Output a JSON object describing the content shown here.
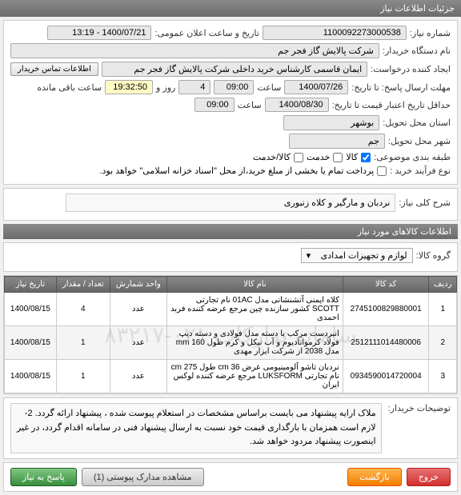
{
  "header": {
    "title": "جزئیات اطلاعات نیاز"
  },
  "fields": {
    "need_no_label": "شماره نیاز:",
    "need_no": "1100092273000538",
    "announce_label": "تاریخ و ساعت اعلان عمومی:",
    "announce": "1400/07/21 - 13:19",
    "device_label": "نام دستگاه خریدار:",
    "device": "شرکت پالایش گاز فجر جم",
    "requester_label": "ایجاد کننده درخواست:",
    "requester": "ایمان قاسمی کارشناس خرید داخلی شرکت پالایش گاز فجر جم",
    "contact_btn": "اطلاعات تماس خریدار",
    "deadline_label": "مهلت ارسال پاسخ: تا تاریخ:",
    "deadline_date": "1400/07/26",
    "time_label": "ساعت",
    "deadline_time": "09:00",
    "days_remaining": "4",
    "days_remaining_label": "روز و",
    "time_remaining": "19:32:50",
    "time_remaining_label": "ساعت باقی مانده",
    "validity_label": "حداقل تاریخ اعتبار قیمت تا تاریخ:",
    "validity_date": "1400/08/30",
    "validity_time": "09:00",
    "province_label": "استان محل تحویل:",
    "province": "بوشهر",
    "city_label": "شهر محل تحویل:",
    "city": "جم",
    "category_label": "طبقه بندی موضوعی:",
    "cat_goods": "کالا",
    "cat_service": "خدمت",
    "cat_goods_service": "کالا/خدمت",
    "process_label": "نوع فرآیند خرید :",
    "process_text": "پرداخت تمام یا بخشی از مبلغ خرید،از محل \"اسناد خزانه اسلامی\" خواهد بود."
  },
  "desc": {
    "label": "شرح کلی نیاز:",
    "value": "نردبان و مارگیر و کلاه زنبوری"
  },
  "goods_header": "اطلاعات کالاهای مورد نیاز",
  "group": {
    "label": "گروه کالا:",
    "value": "لوازم و تجهیزات امدادی"
  },
  "table": {
    "columns": [
      "ردیف",
      "کد کالا",
      "نام کالا",
      "واحد شمارش",
      "تعداد / مقدار",
      "تاریخ نیاز"
    ],
    "rows": [
      [
        "1",
        "2745100829880001",
        "کلاه ایمنی آتشنشانی مدل 01AC نام تجارتی SCOTT کشور سازنده چین مرجع عرضه کننده فربد احمدی",
        "عدد",
        "4",
        "1400/08/15"
      ],
      [
        "2",
        "2512111014480006",
        "انبردست مرکب با دسته مدل فولادی و دسته دیپ فولاد کرموانادیوم و آب نیکل و کرم طول 160 mm مدل 2038 از شرکت ابزار مهدی",
        "عدد",
        "1",
        "1400/08/15"
      ],
      [
        "3",
        "0934590014720004",
        "نردبان تاشو آلومینیومی عرض 36 cm طول 275 cm نام تجارتی LUKSFORM مرجع عرضه کننده لوکس ایران",
        "عدد",
        "1",
        "1400/08/15"
      ]
    ]
  },
  "watermark": "سامانه تدارکات ۰۲۱-۸۳۲۱۷",
  "notes": {
    "label": "توضیحات خریدار:",
    "text": "ملاک ارایه پیشنهاد می بایست براساس مشخصات در استعلام پیوست شده ، پیشنهاد ارائه گردد. 2-لازم است همزمان با بارگذاری قیمت خود نسبت به ارسال پیشنهاد فنی در سامانه اقدام گردد، در غیر اینصورت پیشنهاد مردود خواهد شد."
  },
  "buttons": {
    "exit": "خروج",
    "back": "بازگشت",
    "attach": "مشاهده مدارک پیوستی",
    "attach_count": "(1)",
    "answer": "پاسخ به نیاز"
  }
}
